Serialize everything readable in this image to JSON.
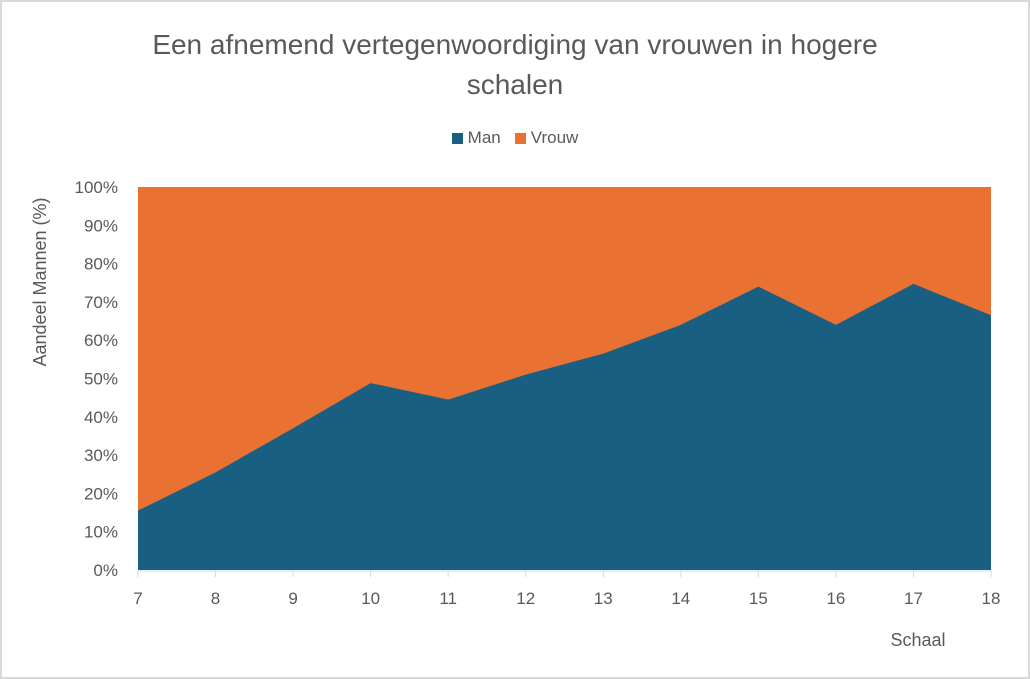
{
  "chart_data": {
    "type": "area",
    "stacked": "percent",
    "title": "Een afnemend vertegenwoordiging van vrouwen in hogere schalen",
    "title_lines": [
      "Een afnemend vertegenwoordiging van vrouwen in hogere",
      "schalen"
    ],
    "xlabel": "Schaal",
    "ylabel": "Aandeel Mannen (%)",
    "categories": [
      7,
      8,
      9,
      10,
      11,
      12,
      13,
      14,
      15,
      16,
      17,
      18
    ],
    "series": [
      {
        "name": "Man",
        "color": "#185f82",
        "values": [
          15.5,
          25.5,
          37,
          48.8,
          44.5,
          51,
          56.5,
          64,
          74,
          64,
          74.7,
          66.5
        ]
      },
      {
        "name": "Vrouw",
        "color": "#e97132",
        "values": [
          84.5,
          74.5,
          63,
          51.2,
          55.5,
          49,
          43.5,
          36,
          26,
          36,
          25.3,
          33.5
        ]
      }
    ],
    "yticks": [
      "0%",
      "10%",
      "20%",
      "30%",
      "40%",
      "50%",
      "60%",
      "70%",
      "80%",
      "90%",
      "100%"
    ],
    "ylim": [
      0,
      100
    ],
    "grid": false,
    "legend_position": "top"
  }
}
